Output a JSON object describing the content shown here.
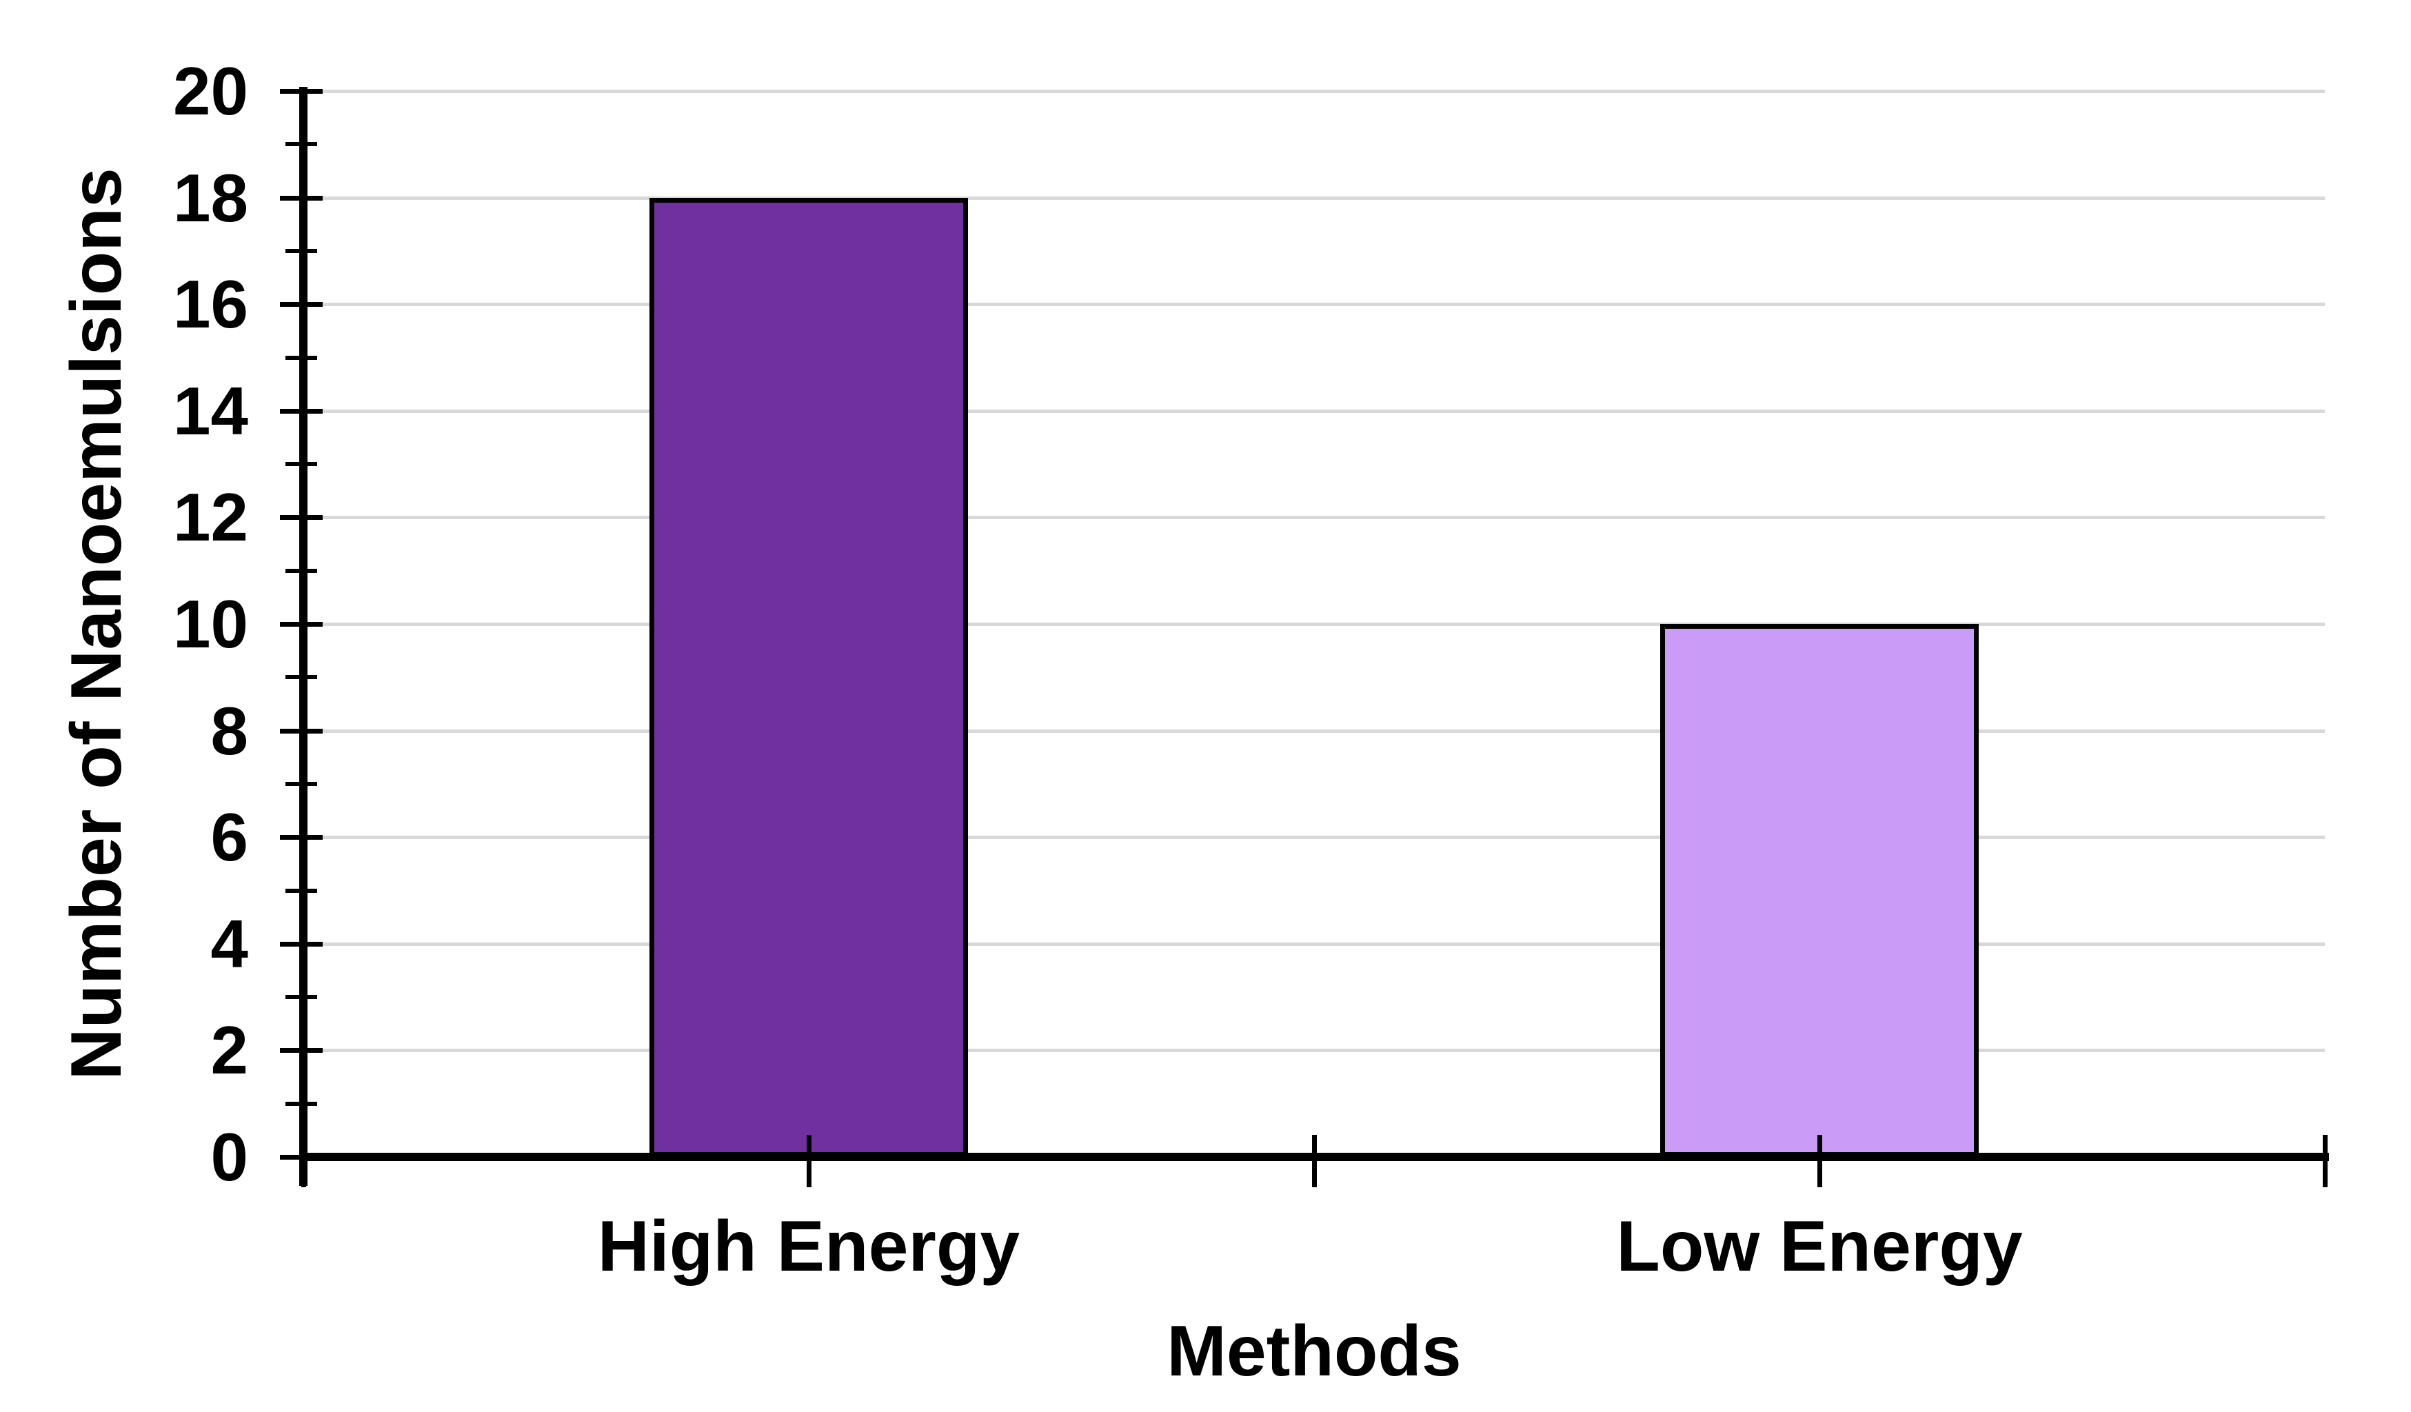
{
  "chart_data": {
    "type": "bar",
    "title": "",
    "categories": [
      "High Energy",
      "Low Energy"
    ],
    "values": [
      18,
      10
    ],
    "xlabel": "Methods",
    "ylabel": "Number of Nanoemulsions",
    "ylim": [
      0,
      20
    ],
    "y_major_step": 2,
    "y_minor_step": 1,
    "y_tick_labels": [
      "0",
      "2",
      "4",
      "6",
      "8",
      "10",
      "12",
      "14",
      "16",
      "18",
      "20"
    ],
    "grid": true,
    "legend": "none",
    "colors": {
      "bars": [
        "#7030A0",
        "#CA9BF7"
      ],
      "bar_border": "#000000",
      "gridline": "#D9D9D9",
      "axis": "#000000",
      "text": "#000000",
      "background": "#FFFFFF"
    }
  }
}
